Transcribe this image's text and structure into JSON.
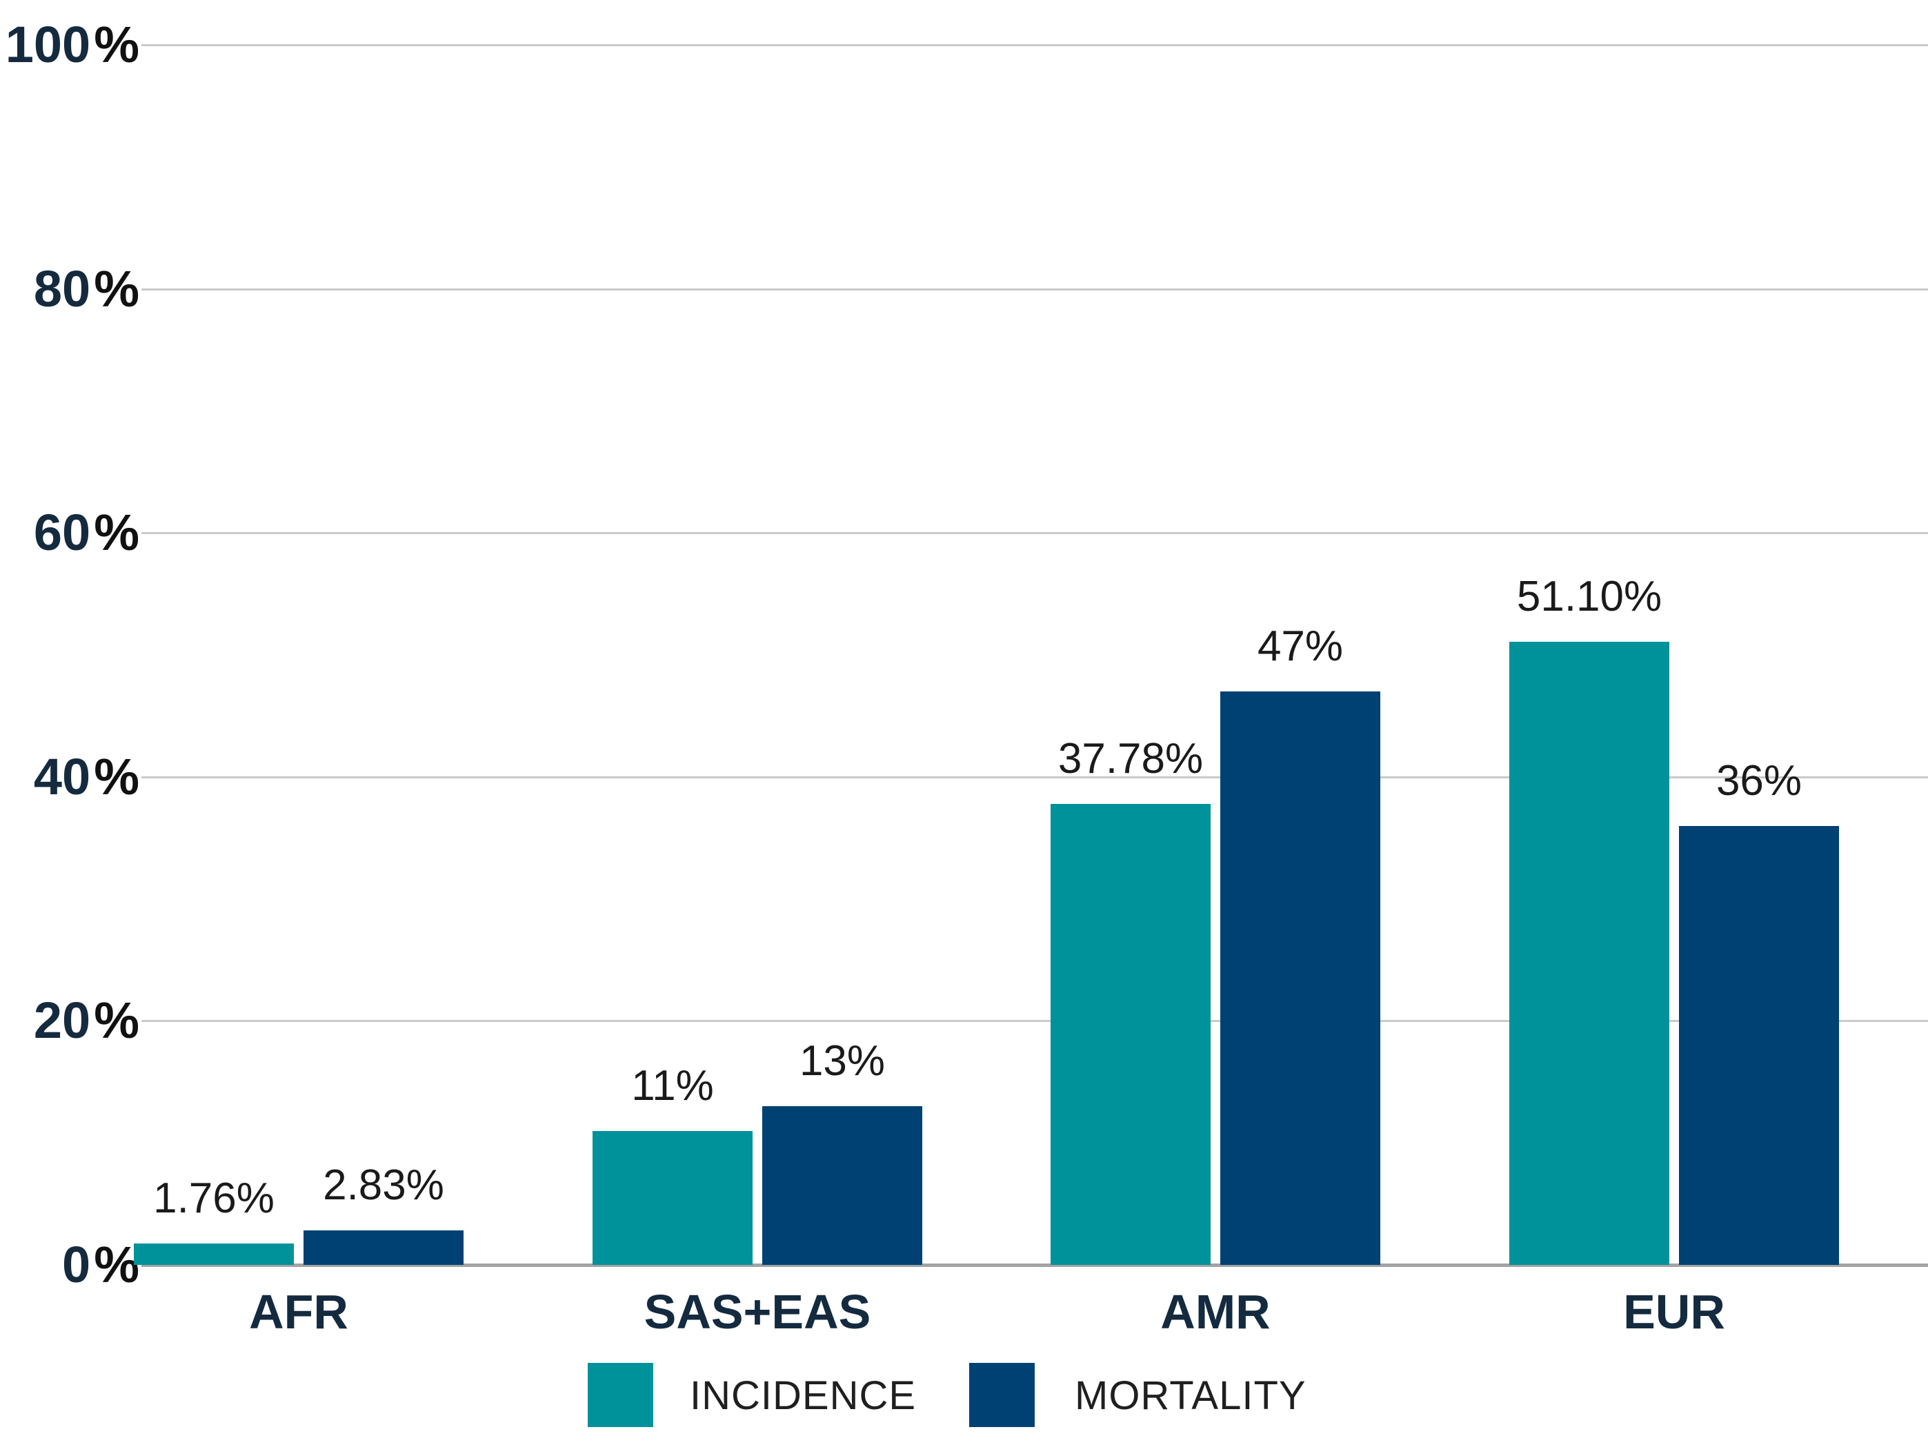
{
  "chart_data": {
    "type": "bar",
    "title": "",
    "categories": [
      "AFR",
      "SAS+EAS",
      "AMR",
      "EUR"
    ],
    "series": [
      {
        "name": "INCIDENCE",
        "color": "#00929b",
        "values": [
          1.76,
          11,
          37.78,
          51.1
        ],
        "data_labels": [
          "1.76%",
          "11%",
          "37.78%",
          "51.10%"
        ]
      },
      {
        "name": "MORTALITY",
        "color": "#004173",
        "values": [
          2.83,
          13,
          47,
          36
        ],
        "data_labels": [
          "2.83%",
          "13%",
          "47%",
          "36%"
        ]
      }
    ],
    "y_axis": {
      "tick_values": [
        0,
        20,
        40,
        60,
        80,
        100
      ],
      "tick_labels": [
        "0%",
        "20%",
        "40%",
        "60%",
        "80%",
        "100%"
      ],
      "percent_suffix": "%",
      "range": [
        0,
        100
      ],
      "grid": true
    },
    "x_axis": {
      "labels": [
        "AFR",
        "SAS+EAS",
        "AMR",
        "EUR"
      ]
    },
    "legend": {
      "position": "bottom",
      "entries": [
        "INCIDENCE",
        "MORTALITY"
      ]
    },
    "colors": {
      "incidence": "#00929b",
      "mortality": "#004173",
      "axis_number_text": "#152a3e",
      "percent_sign_text": "#111111",
      "data_label_text": "#1a1a1a",
      "category_text": "#142a3f",
      "legend_text": "#1f1f1f",
      "gridline": "#c9c9c9",
      "baseline": "#a3a3a3",
      "background": "#ffffff"
    }
  }
}
